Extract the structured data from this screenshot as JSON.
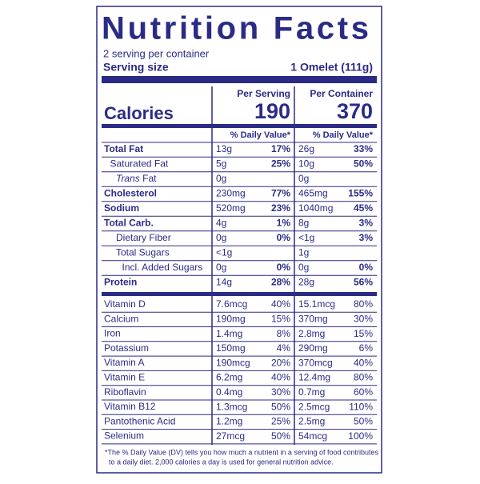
{
  "header": {
    "title": "Nutrition Facts",
    "servings": "2 serving per container",
    "serving_size_label": "Serving size",
    "serving_size": "1 Omelet (111g)"
  },
  "calories": {
    "label": "Calories",
    "per_serving_heading": "Per Serving",
    "per_serving": 190,
    "per_container_heading": "Per Container",
    "per_container": 370
  },
  "dv_headings": [
    "% Daily Value*",
    "% Daily Value*"
  ],
  "nutrients": [
    {
      "name": "Total Fat",
      "bold": true,
      "indent": 0,
      "serving_amount": "13g",
      "serving_dv": "17%",
      "container_amount": "26g",
      "container_dv": "33%"
    },
    {
      "name": "Saturated Fat",
      "bold": false,
      "indent": 1,
      "serving_amount": "5g",
      "serving_dv": "25%",
      "container_amount": "10g",
      "container_dv": "50%"
    },
    {
      "name_italic": "Trans",
      "name": "Fat",
      "bold": false,
      "indent": 2,
      "serving_amount": "0g",
      "container_amount": "0g"
    },
    {
      "name": "Cholesterol",
      "bold": true,
      "indent": 0,
      "serving_amount": "230mg",
      "serving_dv": "77%",
      "container_amount": "465mg",
      "container_dv": "155%"
    },
    {
      "name": "Sodium",
      "bold": true,
      "indent": 0,
      "serving_amount": "520mg",
      "serving_dv": "23%",
      "container_amount": "1040mg",
      "container_dv": "45%"
    },
    {
      "name": "Total Carb.",
      "bold": true,
      "indent": 0,
      "serving_amount": "4g",
      "serving_dv": "1%",
      "container_amount": "8g",
      "container_dv": "3%"
    },
    {
      "name": "Dietary Fiber",
      "bold": false,
      "indent": 2,
      "serving_amount": "0g",
      "serving_dv": "0%",
      "container_amount": "<1g",
      "container_dv": "3%"
    },
    {
      "name": "Total Sugars",
      "bold": false,
      "indent": 2,
      "serving_amount": "<1g",
      "container_amount": "1g"
    },
    {
      "name": "Incl. Added Sugars",
      "bold": false,
      "indent": 3,
      "serving_amount": "0g",
      "serving_dv": "0%",
      "container_amount": "0g",
      "container_dv": "0%"
    },
    {
      "name": "Protein",
      "bold": true,
      "indent": 0,
      "serving_amount": "14g",
      "serving_dv": "28%",
      "container_amount": "28g",
      "container_dv": "56%"
    }
  ],
  "vitamins": [
    {
      "name": "Vitamin D",
      "serving_amount": "7.6mcg",
      "serving_dv": "40%",
      "container_amount": "15.1mcg",
      "container_dv": "80%"
    },
    {
      "name": "Calcium",
      "serving_amount": "190mg",
      "serving_dv": "15%",
      "container_amount": "370mg",
      "container_dv": "30%"
    },
    {
      "name": "Iron",
      "serving_amount": "1.4mg",
      "serving_dv": "8%",
      "container_amount": "2.8mg",
      "container_dv": "15%"
    },
    {
      "name": "Potassium",
      "serving_amount": "150mg",
      "serving_dv": "4%",
      "container_amount": "290mg",
      "container_dv": "6%"
    },
    {
      "name": "Vitamin A",
      "serving_amount": "190mcg",
      "serving_dv": "20%",
      "container_amount": "370mcg",
      "container_dv": "40%"
    },
    {
      "name": "Vitamin E",
      "serving_amount": "6.2mg",
      "serving_dv": "40%",
      "container_amount": "12.4mg",
      "container_dv": "80%"
    },
    {
      "name": "Riboflavin",
      "serving_amount": "0.4mg",
      "serving_dv": "30%",
      "container_amount": "0.7mg",
      "container_dv": "60%"
    },
    {
      "name": "Vitamin B12",
      "serving_amount": "1.3mcg",
      "serving_dv": "50%",
      "container_amount": "2.5mcg",
      "container_dv": "110%"
    },
    {
      "name": "Pantothenic Acid",
      "serving_amount": "1.2mg",
      "serving_dv": "25%",
      "container_amount": "2.5mg",
      "container_dv": "50%"
    },
    {
      "name": "Selenium",
      "serving_amount": "27mcg",
      "serving_dv": "50%",
      "container_amount": "54mcg",
      "container_dv": "100%"
    }
  ],
  "footnote": [
    "*The % Daily Value (DV) tells you how much a nutrient in a serving of food contributes",
    "to a daily diet. 2,000 calories a day is used for general nutrition advice."
  ]
}
